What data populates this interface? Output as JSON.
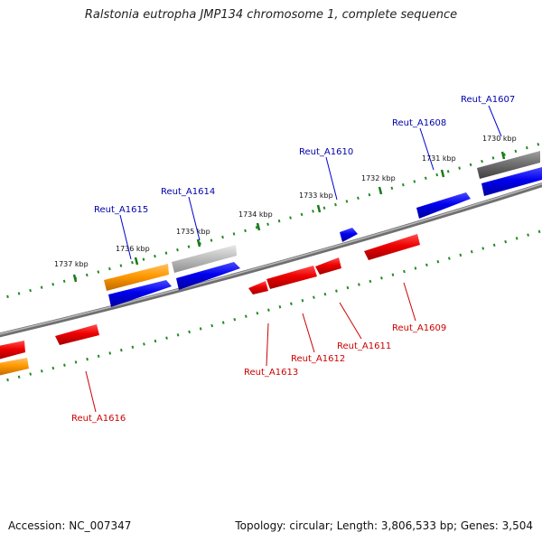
{
  "title": "Ralstonia eutropha JMP134 chromosome 1, complete sequence",
  "footer": {
    "accession": "Accession: NC_007347",
    "summary": "Topology: circular; Length: 3,806,533 bp; Genes: 3,504"
  },
  "colors": {
    "forward_label": "#0000aa",
    "reverse_label": "#cc0000",
    "backbone": "#808080",
    "tick": "#228b22"
  },
  "ticks": [
    "1730 kbp",
    "1731 kbp",
    "1732 kbp",
    "1733 kbp",
    "1734 kbp",
    "1735 kbp",
    "1736 kbp",
    "1737 kbp"
  ],
  "forward_labels": [
    "Reut_A1607",
    "Reut_A1608",
    "Reut_A1610",
    "Reut_A1614",
    "Reut_A1615"
  ],
  "reverse_labels": [
    "Reut_A1609",
    "Reut_A1611",
    "Reut_A1612",
    "Reut_A1613",
    "Reut_A1616"
  ]
}
